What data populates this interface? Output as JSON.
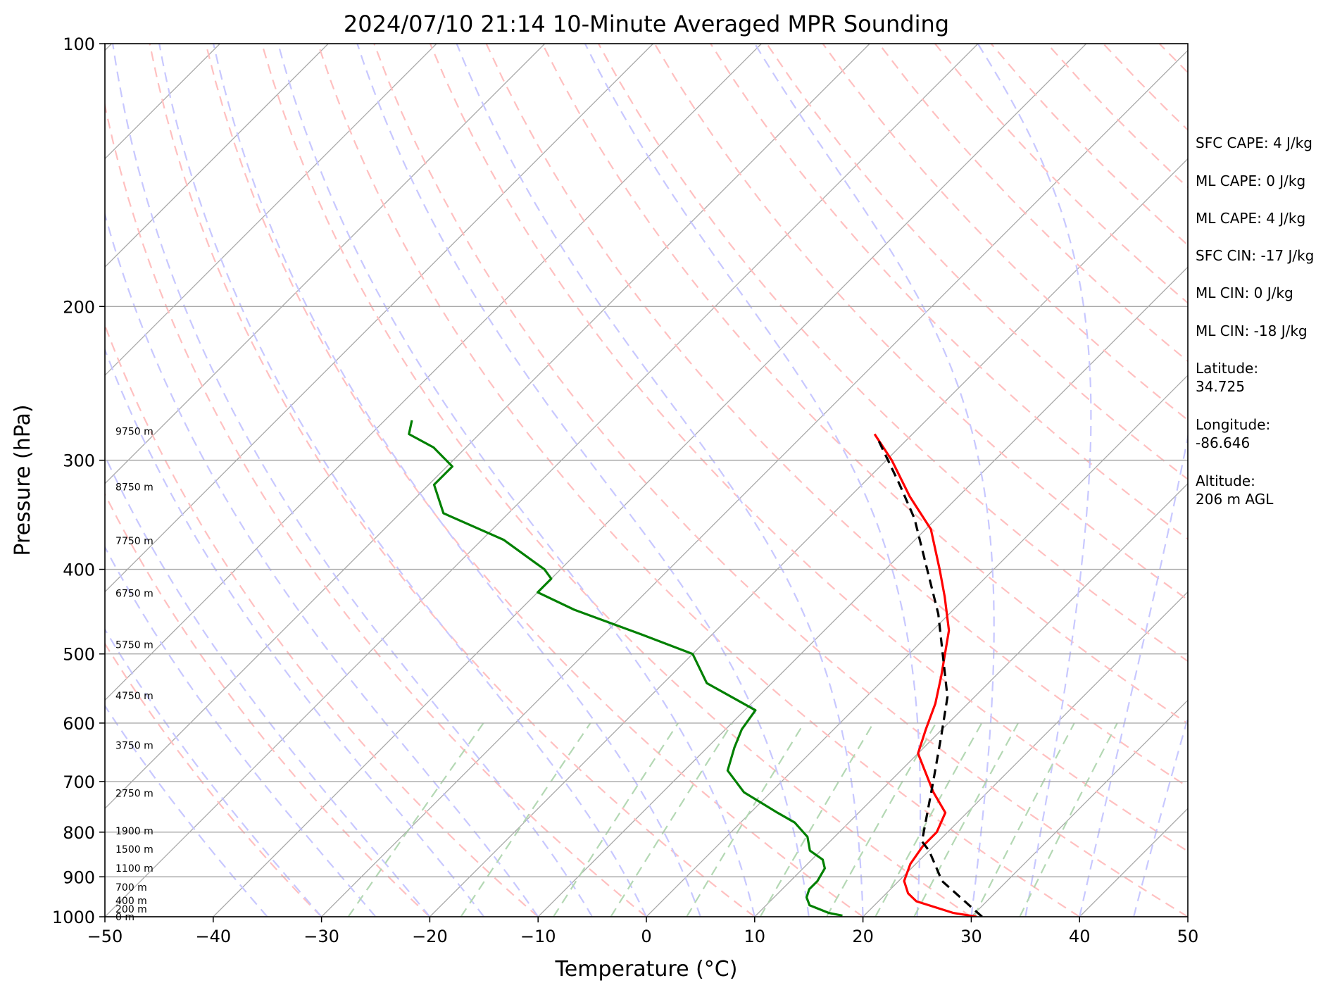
{
  "chart_data": {
    "type": "line",
    "title": "2024/07/10 21:14 10-Minute Averaged MPR Sounding",
    "xlabel": "Temperature (°C)",
    "ylabel": "Pressure (hPa)",
    "xlim": [
      -50,
      50
    ],
    "ylim": [
      1000,
      100
    ],
    "y_scale": "log",
    "skew": true,
    "grid": true,
    "x_ticks": [
      "−50",
      "−40",
      "−30",
      "−20",
      "−10",
      "0",
      "10",
      "20",
      "30",
      "40",
      "50"
    ],
    "y_ticks": [
      "100",
      "200",
      "300",
      "400",
      "500",
      "600",
      "700",
      "800",
      "900",
      "1000"
    ],
    "height_labels": [
      {
        "label": "0 m",
        "p": 1000
      },
      {
        "label": "200 m",
        "p": 980
      },
      {
        "label": "400 m",
        "p": 958
      },
      {
        "label": "700 m",
        "p": 925
      },
      {
        "label": "1100 m",
        "p": 880
      },
      {
        "label": "1500 m",
        "p": 837
      },
      {
        "label": "1900 m",
        "p": 797
      },
      {
        "label": "2750 m",
        "p": 722
      },
      {
        "label": "3750 m",
        "p": 636
      },
      {
        "label": "4750 m",
        "p": 558
      },
      {
        "label": "5750 m",
        "p": 488
      },
      {
        "label": "6750 m",
        "p": 426
      },
      {
        "label": "7750 m",
        "p": 371
      },
      {
        "label": "8750 m",
        "p": 322
      },
      {
        "label": "9750 m",
        "p": 278
      }
    ],
    "series": [
      {
        "color": "#ff0000",
        "style": "solid",
        "points": [
          [
            30.5,
            1000
          ],
          [
            28.0,
            990
          ],
          [
            23.5,
            960
          ],
          [
            22.0,
            940
          ],
          [
            20.5,
            910
          ],
          [
            19.5,
            870
          ],
          [
            19.0,
            830
          ],
          [
            19.0,
            800
          ],
          [
            18.0,
            760
          ],
          [
            15.0,
            720
          ],
          [
            10.0,
            650
          ],
          [
            8.5,
            610
          ],
          [
            7.0,
            570
          ],
          [
            5.0,
            530
          ],
          [
            1.5,
            470
          ],
          [
            -2.0,
            430
          ],
          [
            -5.0,
            400
          ],
          [
            -9.5,
            360
          ],
          [
            -14.5,
            330
          ],
          [
            -19.5,
            300
          ],
          [
            -23.5,
            280
          ]
        ]
      },
      {
        "color": "#008000",
        "style": "solid",
        "points": [
          [
            18.0,
            997
          ],
          [
            16.5,
            990
          ],
          [
            14.0,
            970
          ],
          [
            13.0,
            950
          ],
          [
            12.5,
            930
          ],
          [
            12.5,
            910
          ],
          [
            12.0,
            880
          ],
          [
            11.0,
            860
          ],
          [
            9.0,
            840
          ],
          [
            7.5,
            810
          ],
          [
            5.0,
            780
          ],
          [
            2.5,
            760
          ],
          [
            -2.5,
            720
          ],
          [
            -6.0,
            680
          ],
          [
            -7.5,
            640
          ],
          [
            -8.5,
            610
          ],
          [
            -9.0,
            580
          ],
          [
            -16.0,
            540
          ],
          [
            -20.0,
            500
          ],
          [
            -26.5,
            475
          ],
          [
            -35.0,
            445
          ],
          [
            -40.0,
            425
          ],
          [
            -40.0,
            410
          ],
          [
            -41.5,
            400
          ],
          [
            -48.0,
            370
          ],
          [
            -56.0,
            345
          ],
          [
            -59.5,
            320
          ],
          [
            -59.5,
            305
          ],
          [
            -63.0,
            290
          ],
          [
            -66.5,
            280
          ],
          [
            -67.5,
            270
          ]
        ]
      },
      {
        "color": "#000000",
        "style": "dashed",
        "points": [
          [
            31.0,
            1000
          ],
          [
            24.0,
            910
          ],
          [
            20.0,
            840
          ],
          [
            18.5,
            820
          ],
          [
            14.0,
            700
          ],
          [
            10.5,
            620
          ],
          [
            7.5,
            560
          ],
          [
            -1.0,
            450
          ],
          [
            -12.0,
            350
          ],
          [
            -16.5,
            320
          ],
          [
            -22.5,
            285
          ]
        ]
      }
    ],
    "background_lines": {
      "isotherms_color": "#a9a9a9",
      "dry_adiabats_color": "#ffc0c0",
      "moist_adiabats_color": "#c8c8ff",
      "mixing_ratio_color": "#b4d8b4"
    }
  },
  "sidebar": {
    "sfc_cape": "SFC CAPE: 4 J/kg",
    "ml_cape_1": "ML CAPE: 0 J/kg",
    "ml_cape_2": "ML CAPE: 4 J/kg",
    "sfc_cin": "SFC CIN: -17 J/kg",
    "ml_cin_1": "ML CIN: 0 J/kg",
    "ml_cin_2": "ML CIN: -18 J/kg",
    "lat_label": "Latitude:",
    "lat_value": "34.725",
    "lon_label": "Longitude:",
    "lon_value": "-86.646",
    "alt_label": "Altitude:",
    "alt_value": "206 m AGL"
  }
}
